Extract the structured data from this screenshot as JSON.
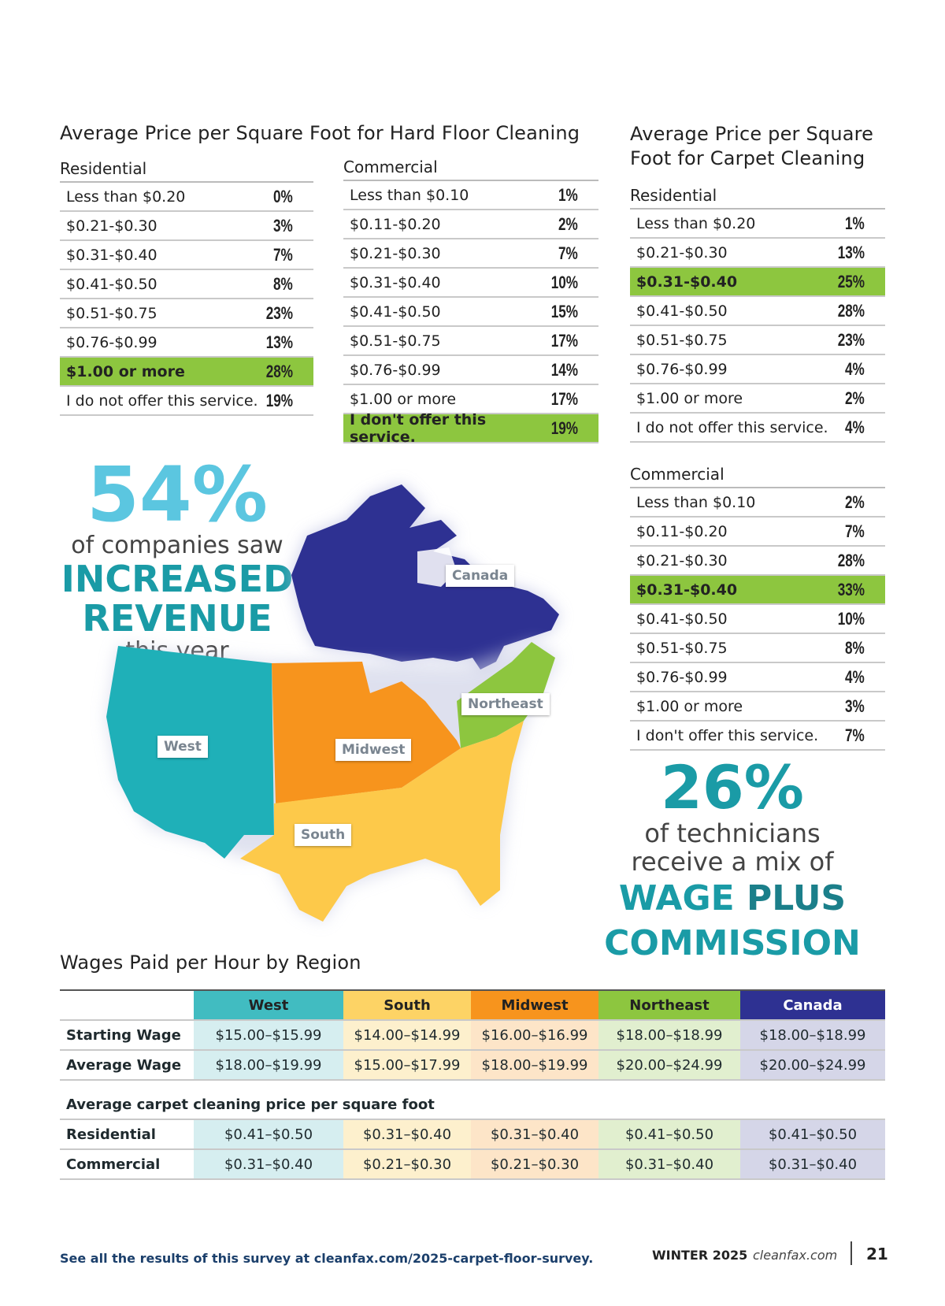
{
  "hard_floor": {
    "title": "Average Price per Square Foot for Hard Floor Cleaning",
    "residential": {
      "label": "Residential",
      "rows": [
        {
          "label": "Less than $0.20",
          "value": "0%"
        },
        {
          "label": "$0.21-$0.30",
          "value": "3%"
        },
        {
          "label": "$0.31-$0.40",
          "value": "7%"
        },
        {
          "label": "$0.41-$0.50",
          "value": "8%"
        },
        {
          "label": "$0.51-$0.75",
          "value": "23%"
        },
        {
          "label": "$0.76-$0.99",
          "value": "13%"
        },
        {
          "label": "$1.00 or more",
          "value": "28%",
          "highlight": true
        },
        {
          "label": "I do not offer this service.",
          "value": "19%"
        }
      ]
    },
    "commercial": {
      "label": "Commercial",
      "rows": [
        {
          "label": "Less than $0.10",
          "value": "1%"
        },
        {
          "label": "$0.11-$0.20",
          "value": "2%"
        },
        {
          "label": "$0.21-$0.30",
          "value": "7%"
        },
        {
          "label": "$0.31-$0.40",
          "value": "10%"
        },
        {
          "label": "$0.41-$0.50",
          "value": "15%"
        },
        {
          "label": "$0.51-$0.75",
          "value": "17%"
        },
        {
          "label": "$0.76-$0.99",
          "value": "14%"
        },
        {
          "label": "$1.00 or more",
          "value": "17%"
        },
        {
          "label": "I don't offer this service.",
          "value": "19%",
          "highlight": true
        }
      ]
    }
  },
  "carpet": {
    "title_line1": "Average Price per Square",
    "title_line2": "Foot for Carpet Cleaning",
    "residential": {
      "label": "Residential",
      "rows": [
        {
          "label": "Less than $0.20",
          "value": "1%"
        },
        {
          "label": "$0.21-$0.30",
          "value": "13%"
        },
        {
          "label": "$0.31-$0.40",
          "value": "25%",
          "highlight": true
        },
        {
          "label": "$0.41-$0.50",
          "value": "28%"
        },
        {
          "label": "$0.51-$0.75",
          "value": "23%"
        },
        {
          "label": "$0.76-$0.99",
          "value": "4%"
        },
        {
          "label": "$1.00 or more",
          "value": "2%"
        },
        {
          "label": "I do not offer this service.",
          "value": "4%"
        }
      ]
    },
    "commercial": {
      "label": "Commercial",
      "rows": [
        {
          "label": "Less than $0.10",
          "value": "2%"
        },
        {
          "label": "$0.11-$0.20",
          "value": "7%"
        },
        {
          "label": "$0.21-$0.30",
          "value": "28%"
        },
        {
          "label": "$0.31-$0.40",
          "value": "33%",
          "highlight": true
        },
        {
          "label": "$0.41-$0.50",
          "value": "10%"
        },
        {
          "label": "$0.51-$0.75",
          "value": "8%"
        },
        {
          "label": "$0.76-$0.99",
          "value": "4%"
        },
        {
          "label": "$1.00 or more",
          "value": "3%"
        },
        {
          "label": "I don't offer this service.",
          "value": "7%"
        }
      ]
    }
  },
  "stat_revenue": {
    "percent": "54%",
    "line1": "of companies saw",
    "line2": "INCREASED",
    "line3": "REVENUE",
    "line4": "this year"
  },
  "stat_wage": {
    "percent": "26%",
    "line1": "of technicians",
    "line2": "receive a mix of",
    "line3a": "WAGE ",
    "line3b": "PLUS",
    "line4": "COMMISSION"
  },
  "map_labels": {
    "canada": "Canada",
    "west": "West",
    "midwest": "Midwest",
    "northeast": "Northeast",
    "south": "South"
  },
  "wages": {
    "title": "Wages Paid per Hour by Region",
    "regions": [
      {
        "name": "West",
        "head": "#41bcc1",
        "cell": "#d6eef0"
      },
      {
        "name": "South",
        "head": "#fdd365",
        "cell": "#fdf0cd"
      },
      {
        "name": "Midwest",
        "head": "#f7941d",
        "cell": "#fde5c8"
      },
      {
        "name": "Northeast",
        "head": "#8dc63f",
        "cell": "#e1efcf"
      },
      {
        "name": "Canada",
        "head": "#2e3192",
        "cell": "#d5d6e8"
      }
    ],
    "rows": [
      {
        "label": "Starting Wage",
        "values": [
          "$15.00–$15.99",
          "$14.00–$14.99",
          "$16.00–$16.99",
          "$18.00–$18.99",
          "$18.00–$18.99"
        ]
      },
      {
        "label": "Average Wage",
        "values": [
          "$18.00–$19.99",
          "$15.00–$17.99",
          "$18.00–$19.99",
          "$20.00–$24.99",
          "$20.00–$24.99"
        ]
      }
    ],
    "carpet_heading": "Average carpet cleaning price per square foot",
    "carpet_rows": [
      {
        "label": "Residential",
        "values": [
          "$0.41–$0.50",
          "$0.31–$0.40",
          "$0.31–$0.40",
          "$0.41–$0.50",
          "$0.41–$0.50"
        ]
      },
      {
        "label": "Commercial",
        "values": [
          "$0.31–$0.40",
          "$0.21–$0.30",
          "$0.21–$0.30",
          "$0.31–$0.40",
          "$0.31–$0.40"
        ]
      }
    ]
  },
  "footer": {
    "link_text": "See all the results of this survey at cleanfax.com/2025-carpet-floor-survey.",
    "issue": "WINTER 2025",
    "site": "cleanfax.com",
    "page": "21"
  },
  "colors": {
    "teal": "#1a9ba6",
    "highlight_green": "#8dc63f",
    "west": "#1fb0b8",
    "midwest": "#f7941d",
    "south": "#fdc94a",
    "northeast": "#8dc63f",
    "canada": "#2e3192"
  }
}
